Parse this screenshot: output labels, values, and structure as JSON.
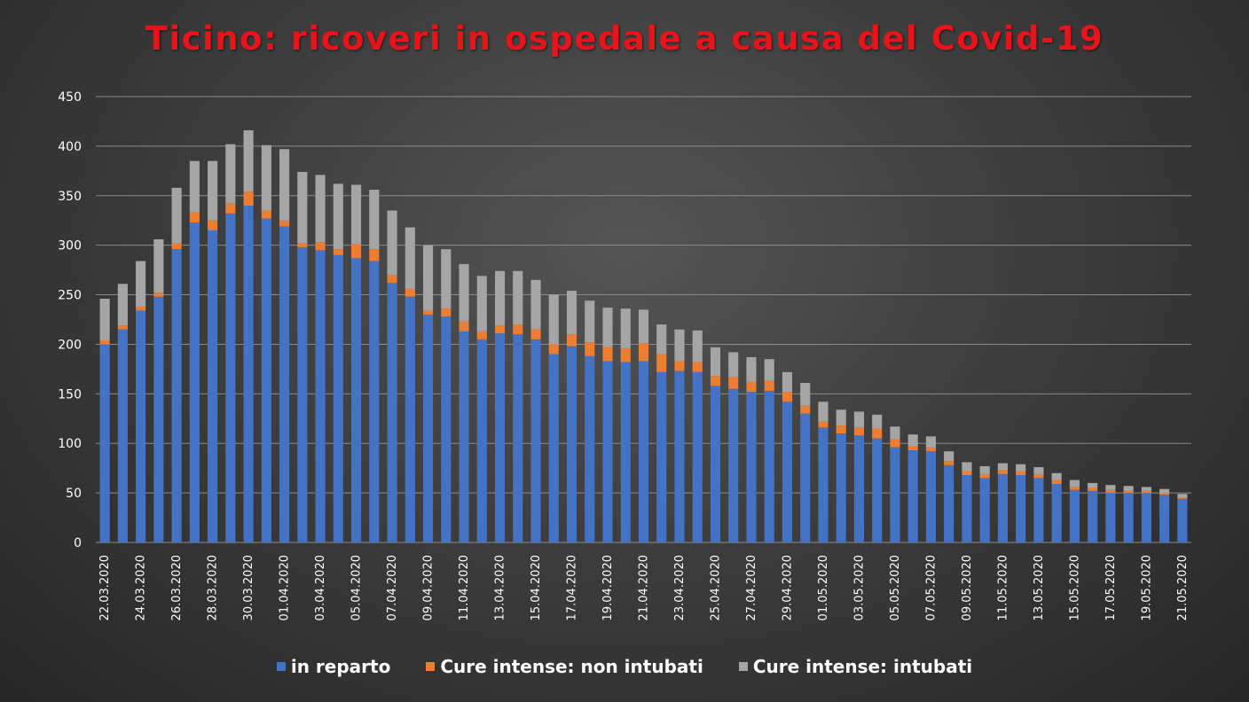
{
  "chart_data": {
    "type": "bar",
    "stacked": true,
    "title": "Ticino: ricoveri in ospedale a causa del Covid-19",
    "xlabel": "",
    "ylabel": "",
    "ylim": [
      0,
      450
    ],
    "yticks": [
      0,
      50,
      100,
      150,
      200,
      250,
      300,
      350,
      400,
      450
    ],
    "grid": true,
    "legend_position": "bottom",
    "colors": {
      "in_reparto": "#4472c4",
      "non_intubati": "#ed7d31",
      "intubati": "#a5a5a5"
    },
    "categories": [
      "22.03.2020",
      "23.03.2020",
      "24.03.2020",
      "25.03.2020",
      "26.03.2020",
      "27.03.2020",
      "28.03.2020",
      "29.03.2020",
      "30.03.2020",
      "31.03.2020",
      "01.04.2020",
      "02.04.2020",
      "03.04.2020",
      "04.04.2020",
      "05.04.2020",
      "06.04.2020",
      "07.04.2020",
      "08.04.2020",
      "09.04.2020",
      "10.04.2020",
      "11.04.2020",
      "12.04.2020",
      "13.04.2020",
      "14.04.2020",
      "15.04.2020",
      "16.04.2020",
      "17.04.2020",
      "18.04.2020",
      "19.04.2020",
      "20.04.2020",
      "21.04.2020",
      "22.04.2020",
      "23.04.2020",
      "24.04.2020",
      "25.04.2020",
      "26.04.2020",
      "27.04.2020",
      "28.04.2020",
      "29.04.2020",
      "30.04.2020",
      "01.05.2020",
      "02.05.2020",
      "03.05.2020",
      "04.05.2020",
      "05.05.2020",
      "06.05.2020",
      "07.05.2020",
      "08.05.2020",
      "09.05.2020",
      "10.05.2020",
      "11.05.2020",
      "12.05.2020",
      "13.05.2020",
      "14.05.2020",
      "15.05.2020",
      "16.05.2020",
      "17.05.2020",
      "18.05.2020",
      "19.05.2020",
      "20.05.2020",
      "21.05.2020"
    ],
    "tick_labels": [
      "22.03.2020",
      "24.03.2020",
      "26.03.2020",
      "28.03.2020",
      "30.03.2020",
      "01.04.2020",
      "03.04.2020",
      "05.04.2020",
      "07.04.2020",
      "09.04.2020",
      "11.04.2020",
      "13.04.2020",
      "15.04.2020",
      "17.04.2020",
      "19.04.2020",
      "21.04.2020",
      "23.04.2020",
      "25.04.2020",
      "27.04.2020",
      "29.04.2020",
      "01.05.2020",
      "03.05.2020",
      "05.05.2020",
      "07.05.2020",
      "09.05.2020",
      "11.05.2020",
      "13.05.2020",
      "15.05.2020",
      "17.05.2020",
      "19.05.2020",
      "21.05.2020"
    ],
    "series": [
      {
        "name": "in reparto",
        "values": [
          200,
          215,
          234,
          248,
          296,
          323,
          315,
          332,
          340,
          327,
          319,
          298,
          295,
          290,
          287,
          284,
          262,
          248,
          230,
          228,
          213,
          205,
          211,
          210,
          205,
          190,
          198,
          188,
          183,
          182,
          183,
          172,
          173,
          172,
          158,
          155,
          152,
          153,
          142,
          130,
          116,
          110,
          108,
          105,
          96,
          93,
          92,
          78,
          68,
          65,
          69,
          68,
          65,
          59,
          53,
          52,
          50,
          50,
          50,
          48,
          44
        ]
      },
      {
        "name": "Cure intense: non intubati",
        "values": [
          4,
          4,
          4,
          4,
          6,
          10,
          10,
          10,
          14,
          8,
          6,
          4,
          8,
          6,
          14,
          12,
          8,
          8,
          4,
          8,
          10,
          8,
          8,
          10,
          10,
          10,
          12,
          14,
          14,
          14,
          18,
          18,
          10,
          10,
          10,
          12,
          10,
          10,
          10,
          8,
          6,
          8,
          8,
          10,
          8,
          4,
          4,
          4,
          4,
          4,
          4,
          4,
          4,
          4,
          3,
          3,
          3,
          2,
          2,
          2,
          1
        ]
      },
      {
        "name": "Cure intense: intubati",
        "values": [
          42,
          42,
          46,
          54,
          56,
          52,
          60,
          60,
          62,
          66,
          72,
          72,
          68,
          66,
          60,
          60,
          65,
          62,
          66,
          60,
          58,
          56,
          55,
          54,
          50,
          50,
          44,
          42,
          40,
          40,
          34,
          30,
          32,
          32,
          29,
          25,
          25,
          22,
          20,
          23,
          20,
          16,
          16,
          14,
          13,
          12,
          11,
          10,
          9,
          8,
          7,
          7,
          7,
          7,
          7,
          5,
          5,
          5,
          4,
          4,
          4
        ]
      }
    ]
  }
}
